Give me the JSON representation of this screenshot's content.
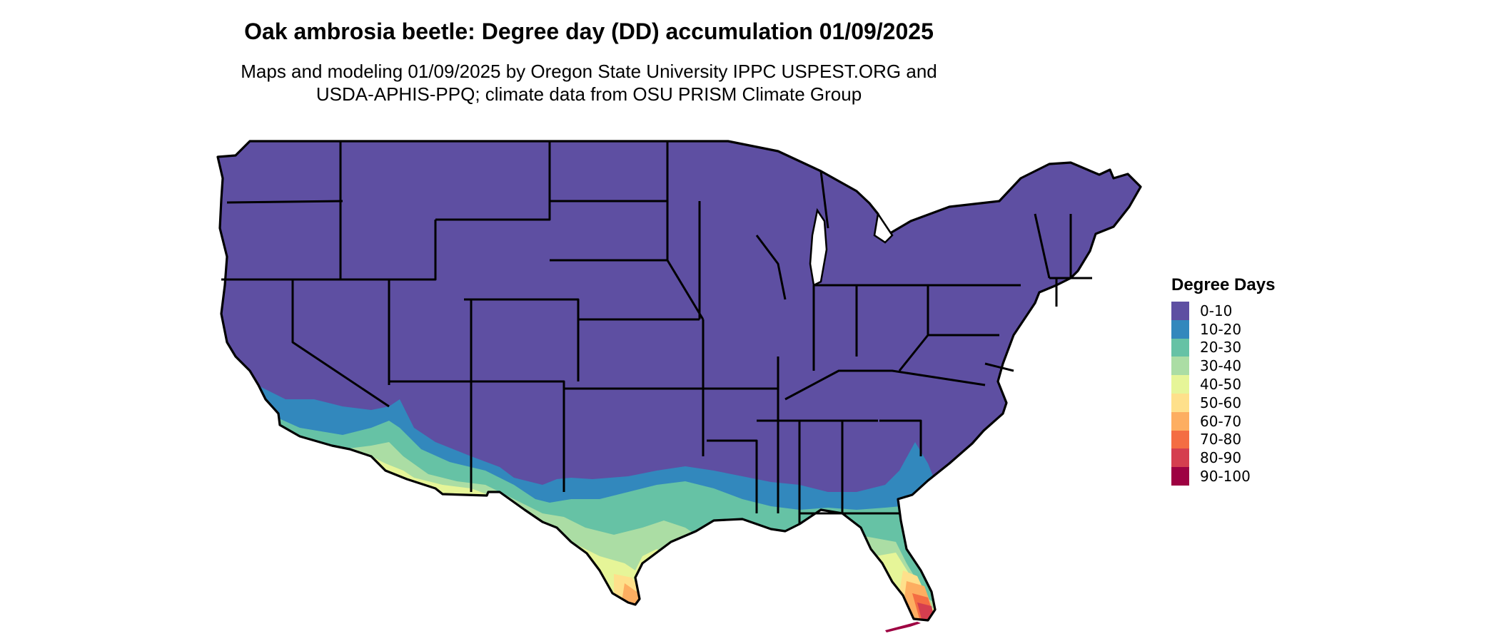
{
  "title": "Oak ambrosia beetle: Degree day (DD) accumulation 01/09/2025",
  "subtitle_lines": [
    "Maps and modeling 01/09/2025 by Oregon State University IPPC USPEST.ORG and",
    "USDA-APHIS-PPQ; climate data from OSU PRISM Climate Group"
  ],
  "legend": {
    "title": "Degree Days",
    "items": [
      {
        "label": "0-10",
        "color": "#5E4FA2"
      },
      {
        "label": "10-20",
        "color": "#3288BD"
      },
      {
        "label": "20-30",
        "color": "#66C2A5"
      },
      {
        "label": "30-40",
        "color": "#ABDDA4"
      },
      {
        "label": "40-50",
        "color": "#E6F598"
      },
      {
        "label": "50-60",
        "color": "#FEE08B"
      },
      {
        "label": "60-70",
        "color": "#FDAE61"
      },
      {
        "label": "70-80",
        "color": "#F46D43"
      },
      {
        "label": "80-90",
        "color": "#D53E4F"
      },
      {
        "label": "90-100",
        "color": "#9E0142"
      }
    ]
  },
  "map": {
    "region": "Contiguous United States",
    "border_color": "#000000",
    "background": "#ffffff"
  }
}
